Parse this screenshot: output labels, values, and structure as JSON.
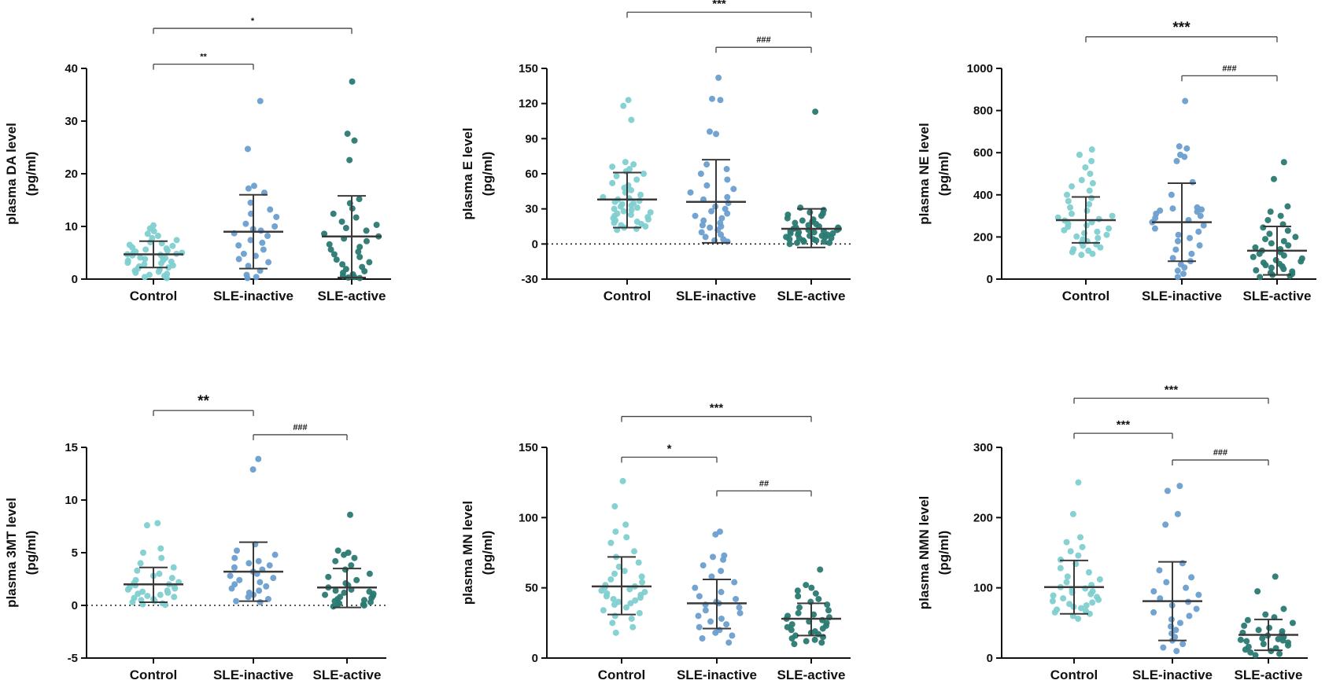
{
  "groups": [
    "Control",
    "SLE-inactive",
    "SLE-active"
  ],
  "group_colors": [
    "#7fcfd0",
    "#6b9fcf",
    "#2a7a72"
  ],
  "chart_data": [
    {
      "type": "scatter",
      "ylabel_line1": "plasma DA level",
      "ylabel_line2": "(pg/ml)",
      "ylim": [
        0,
        40
      ],
      "yticks": [
        0,
        10,
        20,
        30,
        40
      ],
      "zero_line": false,
      "categories": [
        "Control",
        "SLE-inactive",
        "SLE-active"
      ],
      "series": [
        {
          "name": "Control",
          "mean": 4.7,
          "sd_low": 2.2,
          "sd_high": 7.2,
          "values": [
            10.2,
            9.6,
            9.1,
            8.6,
            8.2,
            7.8,
            7.4,
            7.0,
            6.8,
            6.5,
            6.3,
            6.0,
            5.8,
            5.6,
            5.4,
            5.2,
            5.0,
            4.9,
            4.8,
            4.7,
            4.6,
            4.5,
            4.3,
            4.1,
            4.0,
            3.8,
            3.6,
            3.5,
            3.3,
            3.1,
            3.0,
            2.8,
            2.6,
            2.4,
            2.2,
            2.0,
            1.8,
            1.6,
            1.4,
            1.2,
            1.0,
            0.8,
            0.6,
            0.4,
            0.2
          ]
        },
        {
          "name": "SLE-inactive",
          "mean": 9.0,
          "sd_low": 2.0,
          "sd_high": 16.0,
          "values": [
            33.8,
            24.7,
            17.7,
            17.2,
            16.4,
            14.5,
            13.2,
            12.4,
            11.8,
            10.5,
            10.0,
            9.5,
            9.2,
            8.7,
            8.2,
            7.4,
            6.9,
            6.4,
            5.6,
            4.8,
            4.4,
            3.8,
            3.2,
            2.5,
            1.6,
            0.8,
            0.4,
            0.2
          ]
        },
        {
          "name": "SLE-active",
          "mean": 8.1,
          "sd_low": 0.3,
          "sd_high": 15.8,
          "values": [
            37.5,
            27.6,
            26.3,
            22.6,
            15.2,
            14.4,
            13.4,
            12.4,
            11.7,
            10.9,
            10.3,
            9.7,
            9.2,
            8.6,
            8.1,
            7.7,
            7.2,
            6.6,
            6.1,
            5.6,
            5.2,
            4.7,
            4.2,
            3.7,
            3.2,
            2.8,
            2.3,
            1.9,
            1.5,
            1.2,
            0.9,
            0.6,
            0.4,
            0.3,
            0.2
          ]
        }
      ],
      "brackets": [
        {
          "from": 0,
          "to": 1,
          "y": 40.8,
          "label": "**",
          "size": "small"
        },
        {
          "from": 0,
          "to": 2,
          "y": 47.6,
          "label": "*",
          "size": "small"
        }
      ]
    },
    {
      "type": "scatter",
      "ylabel_line1": "plasma E level",
      "ylabel_line2": "(pg/ml)",
      "ylim": [
        -30,
        150
      ],
      "yticks": [
        -30,
        0,
        30,
        60,
        90,
        120,
        150
      ],
      "zero_line": true,
      "categories": [
        "Control",
        "SLE-inactive",
        "SLE-active"
      ],
      "series": [
        {
          "name": "Control",
          "mean": 38,
          "sd_low": 14,
          "sd_high": 61,
          "values": [
            123,
            118,
            106,
            70,
            68,
            66,
            64,
            62,
            60,
            58,
            55,
            52,
            50,
            48,
            46,
            44,
            42,
            40,
            39,
            38,
            37,
            36,
            35,
            34,
            33,
            32,
            31,
            30,
            29,
            28,
            27,
            26,
            25,
            24,
            23,
            22,
            21,
            20,
            19,
            18,
            17,
            16,
            15,
            14,
            13,
            12
          ]
        },
        {
          "name": "SLE-inactive",
          "mean": 36,
          "sd_low": 1,
          "sd_high": 72,
          "values": [
            142,
            124,
            123,
            96,
            94,
            68,
            64,
            60,
            55,
            50,
            47,
            44,
            40,
            38,
            35,
            32,
            30,
            28,
            26,
            24,
            22,
            20,
            18,
            16,
            15,
            14,
            12,
            10,
            8,
            6,
            4,
            3,
            2
          ]
        },
        {
          "name": "SLE-active",
          "mean": 13,
          "sd_low": -3,
          "sd_high": 30,
          "values": [
            113,
            31,
            29,
            27,
            26,
            25,
            24,
            22,
            21,
            20,
            19,
            18,
            17,
            16,
            15,
            14,
            14,
            13,
            13,
            12,
            12,
            11,
            11,
            10,
            10,
            9,
            9,
            8,
            8,
            7,
            7,
            6,
            6,
            5,
            5,
            4,
            4,
            3,
            3,
            2,
            2,
            1,
            1,
            0
          ]
        }
      ],
      "brackets": [
        {
          "from": 1,
          "to": 2,
          "y": 168,
          "label": "###",
          "size": "small"
        },
        {
          "from": 0,
          "to": 2,
          "y": 198,
          "label": "***",
          "size": "medium"
        }
      ]
    },
    {
      "type": "scatter",
      "ylabel_line1": "plasma NE level",
      "ylabel_line2": "(pg/ml)",
      "ylim": [
        0,
        1000
      ],
      "yticks": [
        0,
        200,
        400,
        600,
        800,
        1000
      ],
      "zero_line": false,
      "categories": [
        "Control",
        "SLE-inactive",
        "SLE-active"
      ],
      "series": [
        {
          "name": "Control",
          "mean": 280,
          "sd_low": 172,
          "sd_high": 390,
          "values": [
            615,
            590,
            560,
            530,
            500,
            470,
            455,
            440,
            420,
            400,
            385,
            370,
            355,
            340,
            325,
            310,
            300,
            292,
            285,
            278,
            270,
            262,
            255,
            248,
            240,
            232,
            225,
            218,
            210,
            202,
            195,
            188,
            180,
            172,
            165,
            158,
            150,
            142,
            135,
            128,
            120,
            115
          ]
        },
        {
          "name": "SLE-inactive",
          "mean": 270,
          "sd_low": 85,
          "sd_high": 455,
          "values": [
            845,
            630,
            620,
            590,
            580,
            560,
            460,
            400,
            340,
            335,
            330,
            325,
            320,
            310,
            300,
            290,
            280,
            270,
            255,
            240,
            225,
            210,
            195,
            180,
            160,
            140,
            120,
            100,
            85,
            70,
            55,
            40,
            25,
            10
          ]
        },
        {
          "name": "SLE-active",
          "mean": 135,
          "sd_low": 20,
          "sd_high": 250,
          "values": [
            555,
            475,
            345,
            320,
            300,
            280,
            260,
            245,
            230,
            215,
            200,
            190,
            180,
            170,
            160,
            150,
            142,
            135,
            128,
            120,
            112,
            105,
            98,
            90,
            84,
            78,
            72,
            66,
            60,
            54,
            48,
            42,
            36,
            30,
            25,
            20,
            15,
            10
          ]
        }
      ],
      "brackets": [
        {
          "from": 1,
          "to": 2,
          "y": 965,
          "label": "###",
          "size": "small"
        },
        {
          "from": 0,
          "to": 2,
          "y": 1150,
          "label": "***",
          "size": "large"
        }
      ]
    },
    {
      "type": "scatter",
      "ylabel_line1": "plasma 3MT level",
      "ylabel_line2": "(pg/ml)",
      "ylim": [
        -5,
        15
      ],
      "yticks": [
        -5,
        0,
        5,
        10,
        15
      ],
      "zero_line": true,
      "categories": [
        "Control",
        "SLE-inactive",
        "SLE-active"
      ],
      "series": [
        {
          "name": "Control",
          "mean": 2.0,
          "sd_low": 0.3,
          "sd_high": 3.6,
          "values": [
            7.8,
            7.6,
            5.4,
            5.0,
            4.5,
            4.0,
            3.6,
            3.3,
            3.0,
            2.8,
            2.6,
            2.4,
            2.2,
            2.1,
            2.0,
            1.9,
            1.8,
            1.7,
            1.6,
            1.5,
            1.4,
            1.3,
            1.2,
            1.1,
            1.0,
            0.9,
            0.8,
            0.7,
            0.6,
            0.5,
            0.4,
            0.3,
            0.2,
            0.1,
            0.05
          ]
        },
        {
          "name": "SLE-inactive",
          "mean": 3.2,
          "sd_low": 0.4,
          "sd_high": 6.0,
          "values": [
            13.9,
            12.9,
            5.8,
            5.2,
            4.8,
            4.5,
            4.2,
            4.0,
            3.8,
            3.6,
            3.4,
            3.2,
            3.0,
            2.8,
            2.6,
            2.4,
            2.2,
            2.0,
            1.8,
            1.6,
            1.4,
            1.2,
            1.0,
            0.8,
            0.6,
            0.4,
            0.3
          ]
        },
        {
          "name": "SLE-active",
          "mean": 1.7,
          "sd_low": -0.2,
          "sd_high": 3.5,
          "values": [
            8.6,
            5.2,
            5.0,
            4.8,
            4.5,
            4.2,
            3.8,
            3.4,
            3.0,
            2.7,
            2.4,
            2.1,
            1.9,
            1.7,
            1.5,
            1.4,
            1.3,
            1.2,
            1.1,
            1.0,
            0.9,
            0.8,
            0.7,
            0.6,
            0.5,
            0.4,
            0.3,
            0.2,
            0.1,
            0.05,
            0.0,
            -0.1
          ]
        }
      ],
      "brackets": [
        {
          "from": 1,
          "to": 2,
          "y": 16.2,
          "label": "###",
          "size": "small"
        },
        {
          "from": 0,
          "to": 1,
          "y": 18.5,
          "label": "**",
          "size": "large"
        }
      ]
    },
    {
      "type": "scatter",
      "ylabel_line1": "plasma MN level",
      "ylabel_line2": "(pg/ml)",
      "ylim": [
        0,
        150
      ],
      "yticks": [
        0,
        50,
        100,
        150
      ],
      "zero_line": false,
      "categories": [
        "Control",
        "SLE-inactive",
        "SLE-active"
      ],
      "series": [
        {
          "name": "Control",
          "mean": 51,
          "sd_low": 31,
          "sd_high": 72,
          "values": [
            126,
            108,
            95,
            90,
            86,
            82,
            76,
            72,
            68,
            65,
            62,
            60,
            58,
            56,
            54,
            52,
            51,
            50,
            49,
            48,
            47,
            46,
            45,
            44,
            43,
            42,
            41,
            40,
            39,
            38,
            36,
            34,
            32,
            30,
            28,
            25,
            22,
            18
          ]
        },
        {
          "name": "SLE-inactive",
          "mean": 39,
          "sd_low": 21,
          "sd_high": 56,
          "values": [
            90,
            88,
            73,
            72,
            70,
            66,
            62,
            58,
            54,
            50,
            47,
            44,
            42,
            40,
            39,
            38,
            36,
            34,
            32,
            30,
            28,
            26,
            24,
            22,
            20,
            18,
            16,
            14,
            11
          ]
        },
        {
          "name": "SLE-active",
          "mean": 28,
          "sd_low": 16,
          "sd_high": 39,
          "values": [
            63,
            52,
            50,
            48,
            46,
            44,
            42,
            40,
            38,
            36,
            34,
            32,
            31,
            30,
            29,
            28,
            27,
            26,
            25,
            24,
            23,
            22,
            21,
            20,
            19,
            18,
            17,
            16,
            15,
            14,
            13,
            12,
            11,
            10
          ]
        }
      ],
      "brackets": [
        {
          "from": 0,
          "to": 1,
          "y": 143,
          "label": "*",
          "size": "medium"
        },
        {
          "from": 1,
          "to": 2,
          "y": 119,
          "label": "##",
          "size": "small"
        },
        {
          "from": 0,
          "to": 2,
          "y": 172,
          "label": "***",
          "size": "medium"
        }
      ]
    },
    {
      "type": "scatter",
      "ylabel_line1": "plasma NMN level",
      "ylabel_line2": "(pg/ml)",
      "ylim": [
        0,
        300
      ],
      "yticks": [
        0,
        100,
        200,
        300
      ],
      "zero_line": false,
      "categories": [
        "Control",
        "SLE-inactive",
        "SLE-active"
      ],
      "series": [
        {
          "name": "Control",
          "mean": 101,
          "sd_low": 63,
          "sd_high": 139,
          "values": [
            250,
            205,
            172,
            165,
            158,
            152,
            146,
            140,
            134,
            128,
            122,
            116,
            112,
            108,
            104,
            101,
            99,
            97,
            95,
            93,
            91,
            89,
            87,
            85,
            83,
            81,
            79,
            77,
            75,
            73,
            71,
            69,
            67,
            65,
            63,
            60,
            56
          ]
        },
        {
          "name": "SLE-inactive",
          "mean": 81,
          "sd_low": 25,
          "sd_high": 137,
          "values": [
            245,
            238,
            205,
            190,
            135,
            125,
            115,
            108,
            100,
            95,
            90,
            85,
            80,
            75,
            70,
            65,
            60,
            55,
            50,
            45,
            40,
            35,
            30,
            25,
            20,
            15,
            10
          ]
        },
        {
          "name": "SLE-active",
          "mean": 33,
          "sd_low": 11,
          "sd_high": 55,
          "values": [
            116,
            95,
            70,
            62,
            58,
            54,
            50,
            46,
            43,
            40,
            38,
            36,
            34,
            32,
            30,
            28,
            27,
            26,
            25,
            24,
            22,
            20,
            18,
            16,
            14,
            12,
            10,
            8,
            6,
            4
          ]
        }
      ],
      "brackets": [
        {
          "from": 0,
          "to": 1,
          "y": 320,
          "label": "***",
          "size": "medium"
        },
        {
          "from": 1,
          "to": 2,
          "y": 282,
          "label": "###",
          "size": "small"
        },
        {
          "from": 0,
          "to": 2,
          "y": 370,
          "label": "***",
          "size": "medium"
        }
      ]
    }
  ]
}
